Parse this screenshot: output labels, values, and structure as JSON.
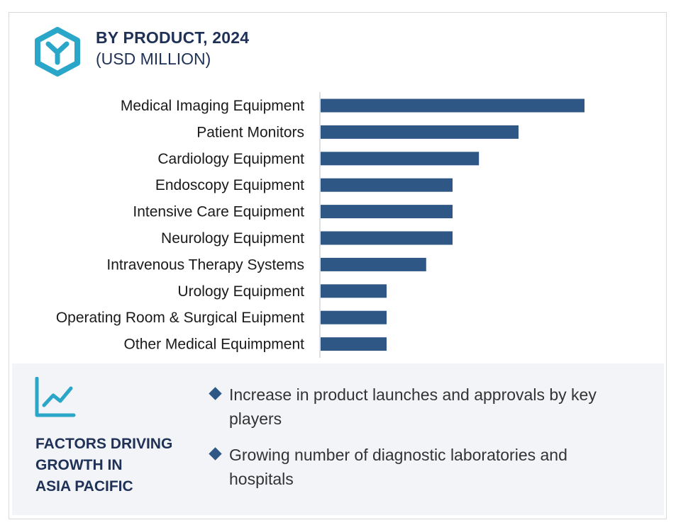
{
  "header": {
    "title": "BY PRODUCT, 2024",
    "subtitle": "(USD MILLION)",
    "icon": "hexagon-y-icon"
  },
  "chart_data": {
    "type": "bar",
    "orientation": "horizontal",
    "title": "BY PRODUCT, 2024",
    "subtitle": "(USD MILLION)",
    "categories": [
      "Medical Imaging Equipment",
      "Patient Monitors",
      "Cardiology Equipment",
      "Endoscopy Equipment",
      "Intensive Care Equipment",
      "Neurology Equipment",
      "Intravenous Therapy Systems",
      "Urology Equipment",
      "Operating Room & Surgical Euipment",
      "Other Medical Equimpment"
    ],
    "values": [
      100,
      75,
      60,
      50,
      50,
      50,
      40,
      25,
      25,
      25
    ],
    "xlim": [
      0,
      100
    ],
    "xlabel": "",
    "ylabel": "",
    "grid": false,
    "legend": "none",
    "bar_color": "#2e5785"
  },
  "factors": {
    "icon": "trend-chart-icon",
    "title_lines": [
      "FACTORS DRIVING",
      "GROWTH IN",
      "ASIA PACIFIC"
    ],
    "items": [
      "Increase in product launches and approvals by key players",
      "Growing number of diagnostic laboratories and hospitals"
    ],
    "accent_color": "#2aa6c9",
    "bullet_color": "#2e5785"
  }
}
